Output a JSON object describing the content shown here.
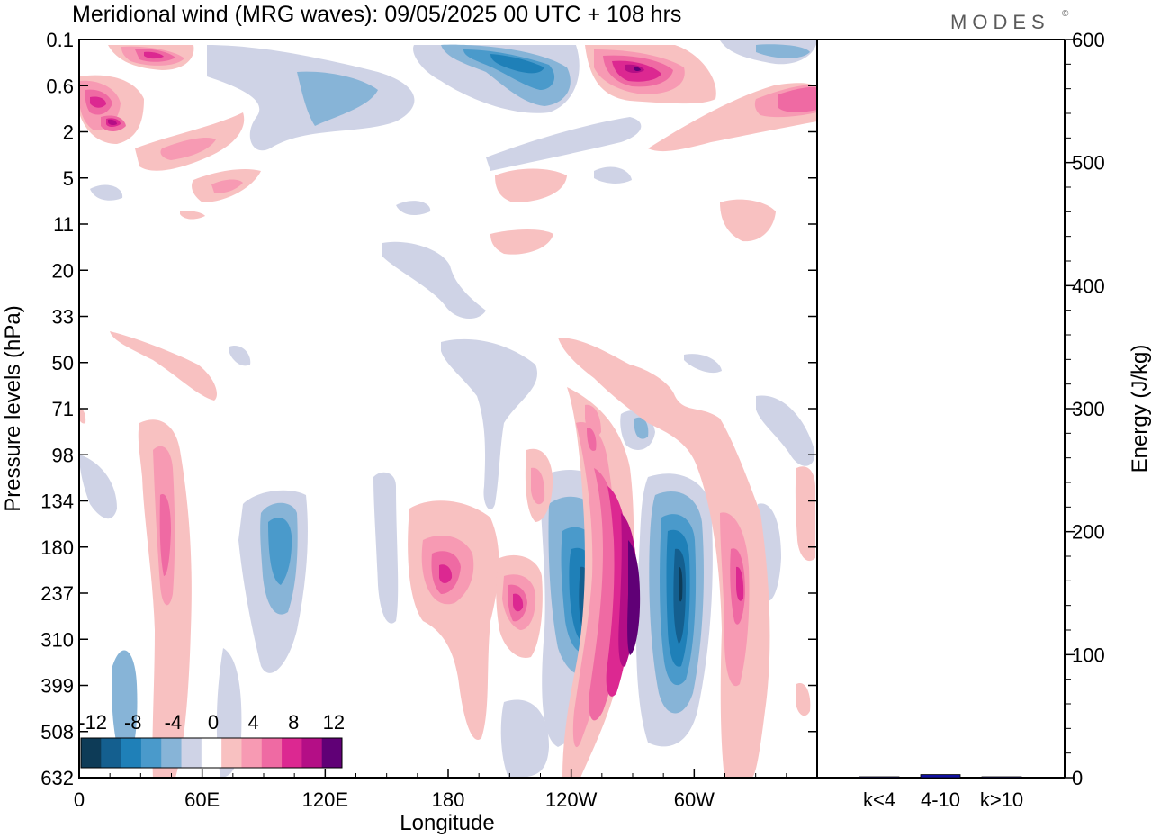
{
  "title": "Meridional wind (MRG waves):  09/05/2025  00 UTC  + 108 hrs",
  "logo": "MODES",
  "logo_mark": "©",
  "chart_data": [
    {
      "type": "heatmap",
      "title": "Meridional wind (MRG waves):  09/05/2025  00 UTC  + 108 hrs",
      "xlabel": "Longitude",
      "ylabel": "Pressure levels (hPa)",
      "x_ticks": [
        "0",
        "60E",
        "120E",
        "180",
        "120W",
        "60W"
      ],
      "x_tick_degrees": [
        0,
        60,
        120,
        180,
        240,
        300
      ],
      "xlim": [
        0,
        360
      ],
      "y_ticks": [
        "0.1",
        "0.6",
        "2",
        "5",
        "11",
        "20",
        "33",
        "50",
        "71",
        "98",
        "134",
        "180",
        "237",
        "310",
        "399",
        "508",
        "632"
      ],
      "colorbar": {
        "labels": [
          "-12",
          "-8",
          "-4",
          "0",
          "4",
          "8",
          "12"
        ],
        "levels": [
          -14,
          -12,
          -10,
          -8,
          -6,
          -4,
          -2,
          2,
          4,
          6,
          8,
          10,
          12,
          14
        ],
        "colors": [
          "#0d3b57",
          "#145f8f",
          "#1f80b8",
          "#4a9acb",
          "#87b4d7",
          "#cfd3e6",
          "#ffffff",
          "#f8c1c1",
          "#f79ab3",
          "#ef6aa3",
          "#dc2891",
          "#b40e86",
          "#600076"
        ],
        "neutral_range": [
          -2,
          2
        ]
      },
      "features": [
        {
          "lon": 228,
          "level": "237",
          "value": -13,
          "sign": "negative"
        },
        {
          "lon": 260,
          "level": "237",
          "value": 14,
          "sign": "positive"
        },
        {
          "lon": 288,
          "level": "237",
          "value": -13,
          "sign": "negative"
        },
        {
          "lon": 322,
          "level": "237",
          "value": 8,
          "sign": "positive"
        },
        {
          "lon": 178,
          "level": "237",
          "value": 7,
          "sign": "positive"
        },
        {
          "lon": 207,
          "level": "237",
          "value": 7,
          "sign": "positive"
        },
        {
          "lon": 97,
          "level": "237",
          "value": -6,
          "sign": "negative"
        },
        {
          "lon": 37,
          "level": "237",
          "value": 5,
          "sign": "positive"
        },
        {
          "lon": 280,
          "level": "0.6",
          "value": 10,
          "sign": "positive"
        },
        {
          "lon": 222,
          "level": "0.6",
          "value": -9,
          "sign": "negative"
        },
        {
          "lon": 30,
          "level": "0.1",
          "value": 9,
          "sign": "positive"
        },
        {
          "lon": 15,
          "level": "2",
          "value": 9,
          "sign": "positive"
        }
      ]
    },
    {
      "type": "bar",
      "categories": [
        "k<4",
        "4-10",
        "k>10"
      ],
      "values": [
        0.5,
        2.5,
        0.3
      ],
      "ylabel": "Energy (J/kg)",
      "ylim": [
        0,
        600
      ],
      "y_ticks": [
        "0",
        "100",
        "200",
        "300",
        "400",
        "500",
        "600"
      ],
      "bar_color": "#1010a0"
    }
  ]
}
